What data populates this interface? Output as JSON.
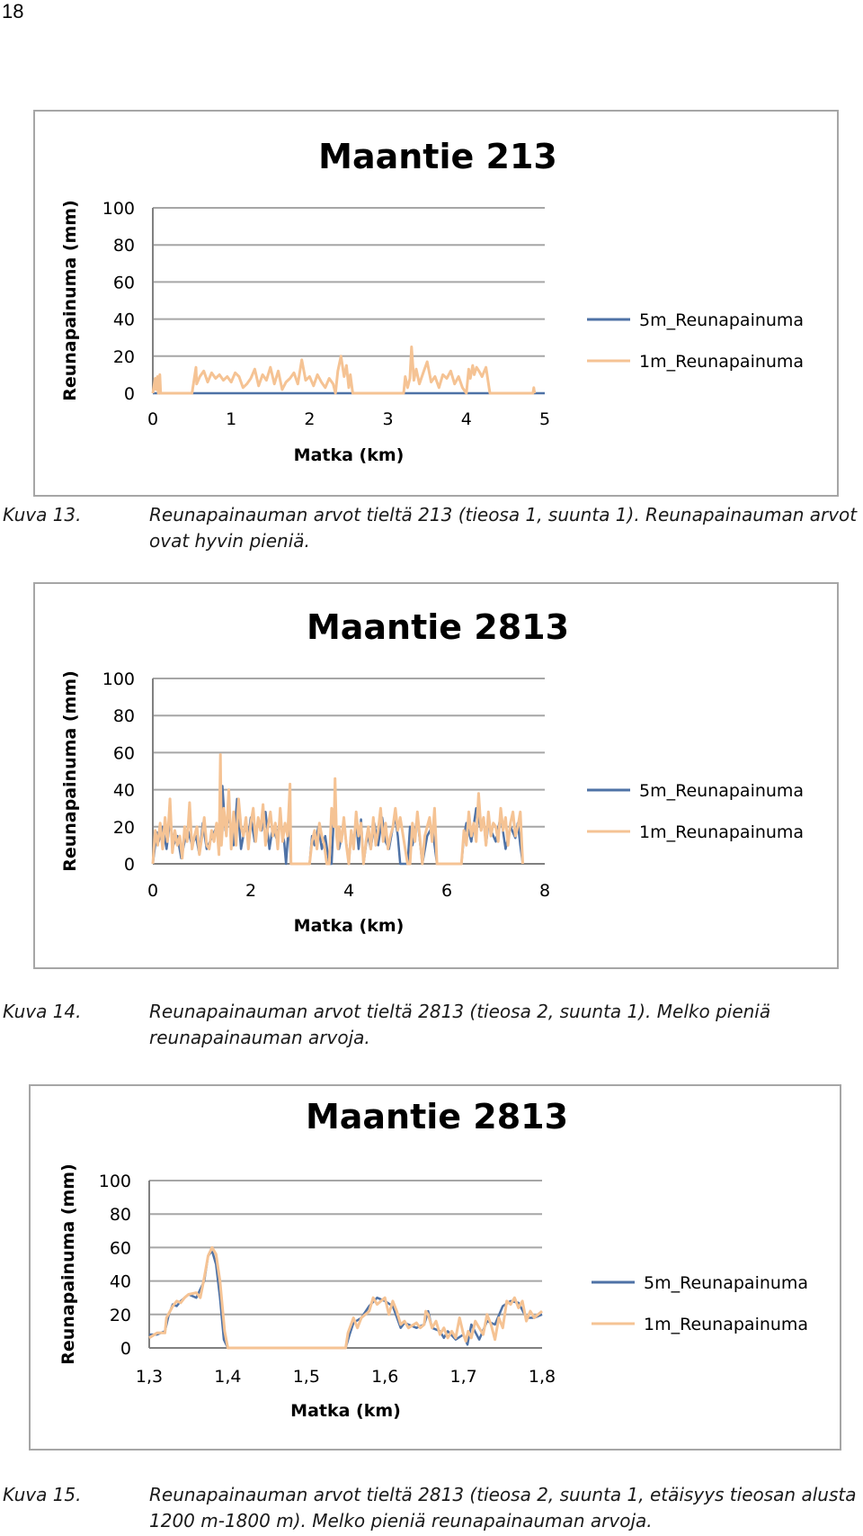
{
  "page_number": "18",
  "colors": {
    "series_5m": "#4e72a6",
    "series_1m": "#f5c394",
    "grid": "#a6a6a6",
    "axis": "#808080"
  },
  "figures": [
    {
      "caption_label": "Kuva 13.",
      "caption_text": "Reunapainauman arvot tieltä 213 (tieosa 1, suunta 1). Reunapainauman arvot ovat hyvin pieniä."
    },
    {
      "caption_label": "Kuva 14.",
      "caption_text": "Reunapainauman arvot tieltä 2813 (tieosa 2, suunta 1). Melko pieniä reunapainauman arvoja."
    },
    {
      "caption_label": "Kuva 15.",
      "caption_text": "Reunapainauman arvot tieltä 2813 (tieosa 2, suunta 1, etäisyys tieosan alusta 1200 m-1800 m). Melko pieniä reunapainauman arvoja."
    }
  ],
  "chart_data": [
    {
      "type": "line",
      "title": "Maantie 213",
      "xlabel": "Matka (km)",
      "ylabel": "Reunapainuma (mm)",
      "xlim": [
        0,
        5
      ],
      "ylim": [
        0,
        100
      ],
      "xticks": [
        0,
        1,
        2,
        3,
        4,
        5
      ],
      "xtick_labels": [
        "0",
        "1",
        "2",
        "3",
        "4",
        "5"
      ],
      "yticks": [
        0,
        20,
        40,
        60,
        80,
        100
      ],
      "ytick_labels": [
        "0",
        "20",
        "40",
        "60",
        "80",
        "100"
      ],
      "legend": "right",
      "grid": true,
      "series": [
        {
          "name": "5m_Reunapainuma",
          "x": [
            0,
            5
          ],
          "y": [
            0,
            0
          ]
        },
        {
          "name": "1m_Reunapainuma",
          "x": [
            0.0,
            0.03,
            0.04,
            0.06,
            0.07,
            0.09,
            0.1,
            0.5,
            0.55,
            0.56,
            0.6,
            0.65,
            0.7,
            0.75,
            0.8,
            0.85,
            0.9,
            0.95,
            1.0,
            1.05,
            1.1,
            1.15,
            1.2,
            1.25,
            1.3,
            1.35,
            1.4,
            1.45,
            1.5,
            1.55,
            1.6,
            1.65,
            1.7,
            1.75,
            1.8,
            1.85,
            1.9,
            1.95,
            2.0,
            2.05,
            2.1,
            2.15,
            2.2,
            2.25,
            2.3,
            2.33,
            2.36,
            2.4,
            2.44,
            2.47,
            2.5,
            2.52,
            2.55,
            3.2,
            3.22,
            3.25,
            3.28,
            3.3,
            3.33,
            3.36,
            3.4,
            3.45,
            3.5,
            3.55,
            3.6,
            3.65,
            3.7,
            3.75,
            3.8,
            3.85,
            3.9,
            3.95,
            4.0,
            4.03,
            4.05,
            4.08,
            4.1,
            4.13,
            4.16,
            4.2,
            4.25,
            4.3,
            4.85,
            4.86,
            4.87
          ],
          "y": [
            0,
            8,
            2,
            9,
            0,
            10,
            0,
            0,
            14,
            5,
            9,
            12,
            6,
            11,
            8,
            10,
            7,
            9,
            6,
            11,
            9,
            3,
            5,
            8,
            13,
            4,
            10,
            7,
            14,
            5,
            12,
            2,
            6,
            8,
            11,
            5,
            18,
            7,
            9,
            4,
            10,
            6,
            3,
            8,
            5,
            0,
            12,
            20,
            9,
            15,
            3,
            10,
            0,
            0,
            9,
            3,
            8,
            25,
            7,
            13,
            5,
            11,
            17,
            6,
            9,
            3,
            10,
            8,
            12,
            5,
            9,
            3,
            0,
            13,
            8,
            15,
            10,
            14,
            12,
            9,
            14,
            0,
            0,
            3,
            0
          ]
        }
      ]
    },
    {
      "type": "line",
      "title": "Maantie 2813",
      "xlabel": "Matka (km)",
      "ylabel": "Reunapainuma (mm)",
      "xlim": [
        0,
        8
      ],
      "ylim": [
        0,
        100
      ],
      "xticks": [
        0,
        2,
        4,
        6,
        8
      ],
      "xtick_labels": [
        "0",
        "2",
        "4",
        "6",
        "8"
      ],
      "yticks": [
        0,
        20,
        40,
        60,
        80,
        100
      ],
      "ytick_labels": [
        "0",
        "20",
        "40",
        "60",
        "80",
        "100"
      ],
      "legend": "right",
      "grid": true,
      "series": [
        {
          "name": "5m_Reunapainuma",
          "x": [
            0.0,
            0.08,
            0.12,
            0.2,
            0.28,
            0.35,
            0.42,
            0.5,
            0.58,
            0.65,
            0.72,
            0.8,
            0.88,
            0.95,
            1.02,
            1.1,
            1.2,
            1.3,
            1.38,
            1.42,
            1.48,
            1.55,
            1.65,
            1.72,
            1.8,
            1.88,
            1.95,
            2.0,
            2.08,
            2.15,
            2.22,
            2.3,
            2.38,
            2.45,
            2.52,
            2.6,
            2.68,
            2.72,
            2.78,
            2.82,
            3.2,
            3.25,
            3.3,
            3.38,
            3.45,
            3.52,
            3.6,
            3.65,
            3.7,
            3.75,
            3.8,
            3.85,
            3.9,
            4.0,
            4.05,
            4.1,
            4.15,
            4.2,
            4.25,
            4.3,
            4.38,
            4.45,
            4.52,
            4.6,
            4.68,
            4.75,
            4.82,
            4.9,
            4.95,
            5.0,
            5.05,
            5.2,
            5.25,
            5.3,
            5.4,
            5.5,
            5.6,
            5.7,
            5.75,
            5.8,
            6.3,
            6.35,
            6.4,
            6.5,
            6.6,
            6.7,
            6.75,
            6.8,
            6.85,
            6.9,
            7.0,
            7.1,
            7.2,
            7.3,
            7.4,
            7.45,
            7.5,
            7.55
          ],
          "y": [
            0,
            17,
            12,
            20,
            8,
            23,
            10,
            15,
            3,
            12,
            18,
            10,
            15,
            5,
            22,
            8,
            14,
            20,
            10,
            42,
            18,
            25,
            10,
            35,
            8,
            20,
            15,
            25,
            12,
            23,
            18,
            28,
            8,
            20,
            14,
            22,
            12,
            0,
            24,
            0,
            0,
            15,
            10,
            20,
            8,
            15,
            0,
            0,
            28,
            20,
            8,
            14,
            22,
            0,
            18,
            10,
            23,
            8,
            24,
            0,
            16,
            8,
            22,
            10,
            25,
            12,
            8,
            20,
            25,
            15,
            0,
            0,
            20,
            10,
            25,
            0,
            15,
            20,
            10,
            0,
            0,
            15,
            22,
            12,
            30,
            18,
            25,
            10,
            22,
            18,
            12,
            26,
            8,
            20,
            14,
            22,
            10,
            0
          ]
        },
        {
          "name": "1m_Reunapainuma",
          "x": [
            0.0,
            0.05,
            0.1,
            0.15,
            0.2,
            0.25,
            0.3,
            0.35,
            0.4,
            0.45,
            0.5,
            0.55,
            0.6,
            0.65,
            0.7,
            0.75,
            0.8,
            0.85,
            0.9,
            0.95,
            1.0,
            1.05,
            1.1,
            1.15,
            1.2,
            1.25,
            1.3,
            1.35,
            1.38,
            1.4,
            1.45,
            1.5,
            1.55,
            1.6,
            1.65,
            1.7,
            1.75,
            1.8,
            1.85,
            1.9,
            1.95,
            2.0,
            2.05,
            2.1,
            2.15,
            2.2,
            2.25,
            2.3,
            2.35,
            2.4,
            2.45,
            2.5,
            2.55,
            2.6,
            2.65,
            2.7,
            2.75,
            2.8,
            2.82,
            3.2,
            3.25,
            3.3,
            3.35,
            3.4,
            3.45,
            3.5,
            3.55,
            3.6,
            3.65,
            3.7,
            3.72,
            3.75,
            3.78,
            3.8,
            3.85,
            3.9,
            3.95,
            4.0,
            4.05,
            4.1,
            4.15,
            4.2,
            4.25,
            4.3,
            4.35,
            4.4,
            4.45,
            4.5,
            4.55,
            4.6,
            4.65,
            4.7,
            4.75,
            4.8,
            4.85,
            4.9,
            4.95,
            5.0,
            5.05,
            5.2,
            5.25,
            5.3,
            5.35,
            5.4,
            5.5,
            5.55,
            5.6,
            5.65,
            5.7,
            5.75,
            5.8,
            6.3,
            6.35,
            6.4,
            6.45,
            6.5,
            6.55,
            6.6,
            6.65,
            6.7,
            6.75,
            6.8,
            6.85,
            6.9,
            6.95,
            7.0,
            7.05,
            7.1,
            7.15,
            7.2,
            7.25,
            7.3,
            7.35,
            7.4,
            7.45,
            7.5,
            7.55
          ],
          "y": [
            0,
            18,
            10,
            22,
            8,
            25,
            12,
            35,
            6,
            18,
            10,
            15,
            3,
            20,
            12,
            33,
            8,
            15,
            20,
            5,
            14,
            25,
            10,
            8,
            18,
            12,
            22,
            5,
            59,
            10,
            30,
            15,
            40,
            8,
            28,
            10,
            35,
            20,
            15,
            25,
            8,
            22,
            30,
            12,
            25,
            18,
            32,
            10,
            20,
            28,
            15,
            22,
            8,
            30,
            12,
            22,
            15,
            43,
            0,
            0,
            12,
            18,
            8,
            22,
            15,
            10,
            0,
            0,
            30,
            20,
            46,
            15,
            8,
            20,
            12,
            25,
            10,
            0,
            18,
            8,
            28,
            15,
            22,
            0,
            12,
            20,
            8,
            25,
            10,
            18,
            30,
            12,
            22,
            8,
            15,
            20,
            30,
            18,
            25,
            0,
            0,
            22,
            12,
            28,
            0,
            15,
            20,
            25,
            12,
            30,
            0,
            0,
            18,
            10,
            28,
            15,
            22,
            12,
            38,
            18,
            25,
            10,
            28,
            15,
            22,
            20,
            12,
            30,
            18,
            25,
            10,
            22,
            28,
            15,
            20,
            28,
            0
          ]
        }
      ]
    },
    {
      "type": "line",
      "title": "Maantie 2813",
      "xlabel": "Matka (km)",
      "ylabel": "Reunapainuma (mm)",
      "xlim": [
        1.3,
        1.8
      ],
      "ylim": [
        0,
        100
      ],
      "xticks": [
        1.3,
        1.4,
        1.5,
        1.6,
        1.7,
        1.8
      ],
      "xtick_labels": [
        "1,3",
        "1,4",
        "1,5",
        "1,6",
        "1,7",
        "1,8"
      ],
      "yticks": [
        0,
        20,
        40,
        60,
        80,
        100
      ],
      "ytick_labels": [
        "0",
        "20",
        "40",
        "60",
        "80",
        "100"
      ],
      "legend": "right",
      "grid": true,
      "series": [
        {
          "name": "5m_Reunapainuma",
          "x": [
            1.3,
            1.31,
            1.32,
            1.325,
            1.33,
            1.335,
            1.34,
            1.35,
            1.36,
            1.37,
            1.375,
            1.38,
            1.385,
            1.39,
            1.395,
            1.4,
            1.55,
            1.555,
            1.56,
            1.57,
            1.58,
            1.59,
            1.6,
            1.61,
            1.62,
            1.625,
            1.63,
            1.64,
            1.65,
            1.655,
            1.66,
            1.67,
            1.675,
            1.68,
            1.69,
            1.7,
            1.705,
            1.71,
            1.72,
            1.73,
            1.74,
            1.75,
            1.76,
            1.77,
            1.78,
            1.79,
            1.8
          ],
          "y": [
            8,
            8,
            10,
            20,
            26,
            25,
            28,
            32,
            30,
            40,
            55,
            58,
            50,
            30,
            5,
            0,
            0,
            8,
            15,
            18,
            25,
            30,
            28,
            25,
            12,
            15,
            14,
            12,
            14,
            22,
            12,
            10,
            6,
            10,
            5,
            8,
            2,
            14,
            5,
            16,
            14,
            25,
            28,
            27,
            18,
            18,
            20
          ]
        },
        {
          "name": "1m_Reunapainuma",
          "x": [
            1.3,
            1.31,
            1.32,
            1.322,
            1.33,
            1.335,
            1.34,
            1.345,
            1.35,
            1.36,
            1.365,
            1.37,
            1.375,
            1.38,
            1.385,
            1.39,
            1.393,
            1.396,
            1.4,
            1.55,
            1.553,
            1.56,
            1.565,
            1.57,
            1.58,
            1.585,
            1.59,
            1.595,
            1.6,
            1.605,
            1.61,
            1.615,
            1.62,
            1.625,
            1.63,
            1.64,
            1.645,
            1.65,
            1.652,
            1.655,
            1.66,
            1.665,
            1.67,
            1.675,
            1.68,
            1.685,
            1.69,
            1.695,
            1.7,
            1.703,
            1.706,
            1.71,
            1.715,
            1.72,
            1.725,
            1.73,
            1.735,
            1.74,
            1.745,
            1.75,
            1.755,
            1.76,
            1.765,
            1.77,
            1.775,
            1.78,
            1.785,
            1.79,
            1.795,
            1.8
          ],
          "y": [
            6,
            9,
            9,
            18,
            25,
            28,
            27,
            30,
            32,
            33,
            30,
            42,
            55,
            60,
            56,
            40,
            25,
            10,
            0,
            0,
            9,
            18,
            12,
            18,
            22,
            30,
            26,
            28,
            30,
            20,
            28,
            22,
            14,
            16,
            12,
            15,
            12,
            14,
            22,
            20,
            12,
            16,
            8,
            12,
            6,
            10,
            6,
            18,
            8,
            4,
            10,
            6,
            16,
            12,
            8,
            20,
            14,
            5,
            18,
            12,
            28,
            26,
            30,
            24,
            28,
            16,
            22,
            18,
            20,
            22
          ]
        }
      ]
    }
  ]
}
